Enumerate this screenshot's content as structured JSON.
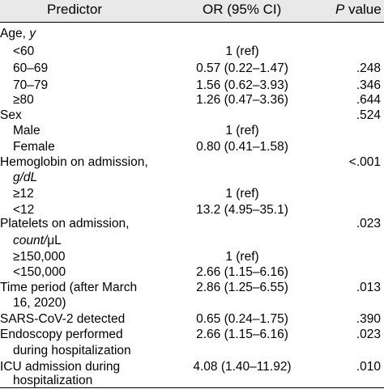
{
  "headers": {
    "predictor": "Predictor",
    "or": "OR (95% CI)",
    "p_italic": "P",
    "p_rest": " value"
  },
  "rows": [
    {
      "label": "Age, ",
      "label_it": "y",
      "or": "",
      "p": ""
    },
    {
      "label": "<60",
      "or": "1 (ref)",
      "p": ""
    },
    {
      "label": "60–69",
      "or": "0.57 (0.22–1.47)",
      "p": ".248"
    },
    {
      "label": "70–79",
      "or": "1.56 (0.62–3.93)",
      "p": ".346"
    },
    {
      "label": "≥80",
      "or": "1.26 (0.47–3.36)",
      "p": ".644"
    },
    {
      "label": "Sex",
      "or": "",
      "p": ".524"
    },
    {
      "label": "Male",
      "or": "1 (ref)",
      "p": ""
    },
    {
      "label": "Female",
      "or": "0.80 (0.41–1.58)",
      "p": ""
    },
    {
      "label": "Hemoglobin on admission,",
      "or": "",
      "p": "<.001"
    },
    {
      "label": "g/dL",
      "or": "",
      "p": ""
    },
    {
      "label": "≥12",
      "or": "1 (ref)",
      "p": ""
    },
    {
      "label": "<12",
      "or": "13.2 (4.95–35.1)",
      "p": ""
    },
    {
      "label": "Platelets on admission,",
      "or": "",
      "p": ".023"
    },
    {
      "label": "count/",
      "label_mu": "μL",
      "or": "",
      "p": ""
    },
    {
      "label": "≥150,000",
      "or": "1 (ref)",
      "p": ""
    },
    {
      "label": "<150,000",
      "or": "2.66 (1.15–6.16)",
      "p": ""
    },
    {
      "label": "Time period (after March",
      "or": "2.86 (1.25–6.55)",
      "p": ".013"
    },
    {
      "label": "16, 2020)",
      "or": "",
      "p": ""
    },
    {
      "label": "SARS-CoV-2 detected",
      "or": "0.65 (0.24–1.75)",
      "p": ".390"
    },
    {
      "label": "Endoscopy performed",
      "or": "2.66 (1.15–6.16)",
      "p": ".023"
    },
    {
      "label": "during hospitalization",
      "or": "",
      "p": ""
    },
    {
      "label": "ICU admission during",
      "or": "4.08 (1.40–11.92)",
      "p": ".010"
    },
    {
      "label": "hospitalization",
      "or": "",
      "p": ""
    }
  ]
}
